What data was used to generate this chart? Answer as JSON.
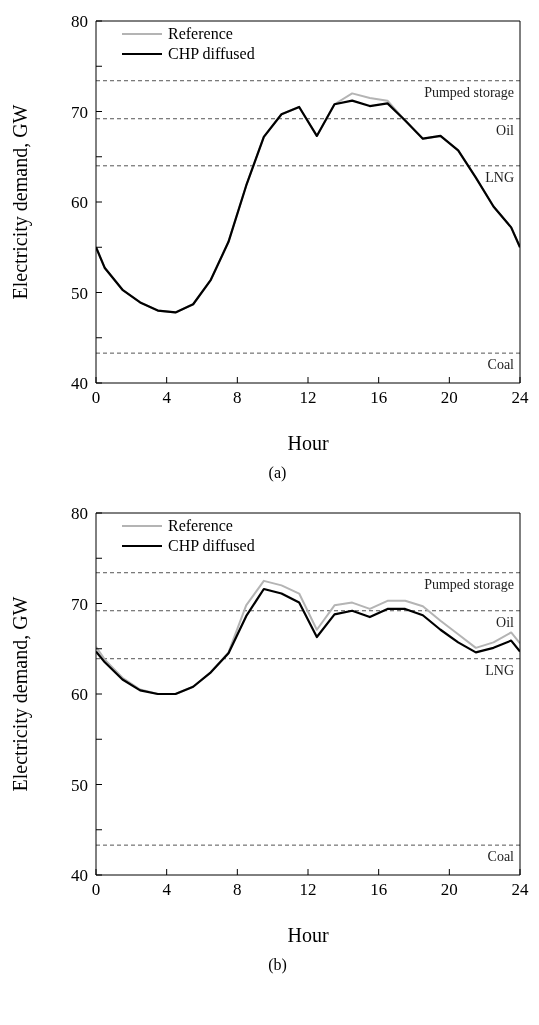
{
  "chart_data": [
    {
      "type": "line",
      "xlabel": "Hour",
      "ylabel": "Electricity demand, GW",
      "annotations": [
        "(a)"
      ],
      "x": [
        0,
        0.5,
        1.5,
        2.5,
        3.5,
        4.5,
        5.5,
        6.5,
        7.5,
        8.5,
        9.5,
        10.5,
        11.5,
        12.5,
        13.5,
        14.5,
        15.5,
        16.5,
        17.5,
        18.5,
        19.5,
        20.5,
        21.5,
        22.5,
        23.5,
        24
      ],
      "series": [
        {
          "name": "Reference",
          "color": "#b4b4b4",
          "values": [
            55.0,
            52.7,
            50.3,
            48.9,
            48.0,
            47.8,
            48.7,
            51.4,
            55.6,
            61.8,
            67.2,
            69.7,
            70.5,
            67.3,
            70.8,
            72.0,
            71.5,
            71.2,
            69.0,
            67.0,
            67.3,
            65.7,
            62.7,
            59.5,
            57.2,
            55.0
          ]
        },
        {
          "name": "CHP diffused",
          "color": "#000000",
          "values": [
            55.0,
            52.7,
            50.3,
            48.9,
            48.0,
            47.8,
            48.7,
            51.4,
            55.6,
            61.8,
            67.2,
            69.7,
            70.5,
            67.3,
            70.8,
            71.2,
            70.6,
            70.9,
            69.0,
            67.0,
            67.3,
            65.7,
            62.7,
            59.5,
            57.2,
            55.0
          ]
        }
      ],
      "xlim": [
        0,
        24
      ],
      "xticks": [
        0,
        4,
        8,
        12,
        16,
        20,
        24
      ],
      "ylim": [
        40,
        80
      ],
      "yticks": [
        40,
        {
          "value": 45,
          "label": null
        },
        50,
        {
          "value": 55,
          "label": null
        },
        60,
        {
          "value": 65,
          "label": null
        },
        70,
        {
          "value": 75,
          "label": null
        },
        80
      ],
      "ref_lines": [
        {
          "axis": "y",
          "value": 73.4,
          "label": "Pumped storage",
          "color": "#555555",
          "line_style": "dashed"
        },
        {
          "axis": "y",
          "value": 69.2,
          "label": "Oil",
          "color": "#555555",
          "line_style": "dashed"
        },
        {
          "axis": "y",
          "value": 64.0,
          "label": "LNG",
          "color": "#555555",
          "line_style": "dashed"
        },
        {
          "axis": "y",
          "value": 43.3,
          "label": "Coal",
          "color": "#555555",
          "line_style": "dashed"
        }
      ],
      "legend": "top left",
      "grid": false,
      "marker": "none",
      "line_style": "solid"
    },
    {
      "type": "line",
      "xlabel": "Hour",
      "ylabel": "Electricity demand, GW",
      "annotations": [
        "(b)"
      ],
      "x": [
        0,
        0.5,
        1.5,
        2.5,
        3.5,
        4.5,
        5.5,
        6.5,
        7.5,
        8.5,
        9.5,
        10.5,
        11.5,
        12.5,
        13.5,
        14.5,
        15.5,
        16.5,
        17.5,
        18.5,
        19.5,
        20.5,
        21.5,
        22.5,
        23.5,
        24
      ],
      "series": [
        {
          "name": "Reference",
          "color": "#b4b4b4",
          "values": [
            65.2,
            63.8,
            61.8,
            60.5,
            60.0,
            60.0,
            60.8,
            62.4,
            64.6,
            69.8,
            72.5,
            72.0,
            71.1,
            67.1,
            69.8,
            70.1,
            69.4,
            70.3,
            70.3,
            69.7,
            68.1,
            66.6,
            65.1,
            65.7,
            66.8,
            65.6
          ]
        },
        {
          "name": "CHP diffused",
          "color": "#000000",
          "values": [
            64.7,
            63.5,
            61.6,
            60.4,
            60.0,
            60.0,
            60.8,
            62.4,
            64.5,
            68.6,
            71.6,
            71.1,
            70.1,
            66.3,
            68.8,
            69.2,
            68.5,
            69.4,
            69.4,
            68.7,
            67.1,
            65.7,
            64.6,
            65.1,
            65.9,
            64.7
          ]
        }
      ],
      "xlim": [
        0,
        24
      ],
      "xticks": [
        0,
        4,
        8,
        12,
        16,
        20,
        24
      ],
      "ylim": [
        40,
        80
      ],
      "yticks": [
        40,
        {
          "value": 45,
          "label": null
        },
        50,
        {
          "value": 55,
          "label": null
        },
        60,
        {
          "value": 65,
          "label": null
        },
        70,
        {
          "value": 75,
          "label": null
        },
        80
      ],
      "ref_lines": [
        {
          "axis": "y",
          "value": 73.4,
          "label": "Pumped storage",
          "color": "#555555",
          "line_style": "dashed"
        },
        {
          "axis": "y",
          "value": 69.2,
          "label": "Oil",
          "color": "#555555",
          "line_style": "dashed"
        },
        {
          "axis": "y",
          "value": 63.9,
          "label": "LNG",
          "color": "#555555",
          "line_style": "dashed"
        },
        {
          "axis": "y",
          "value": 43.3,
          "label": "Coal",
          "color": "#555555",
          "line_style": "dashed"
        }
      ],
      "legend": "top left",
      "grid": false,
      "marker": "none",
      "line_style": "solid"
    }
  ]
}
